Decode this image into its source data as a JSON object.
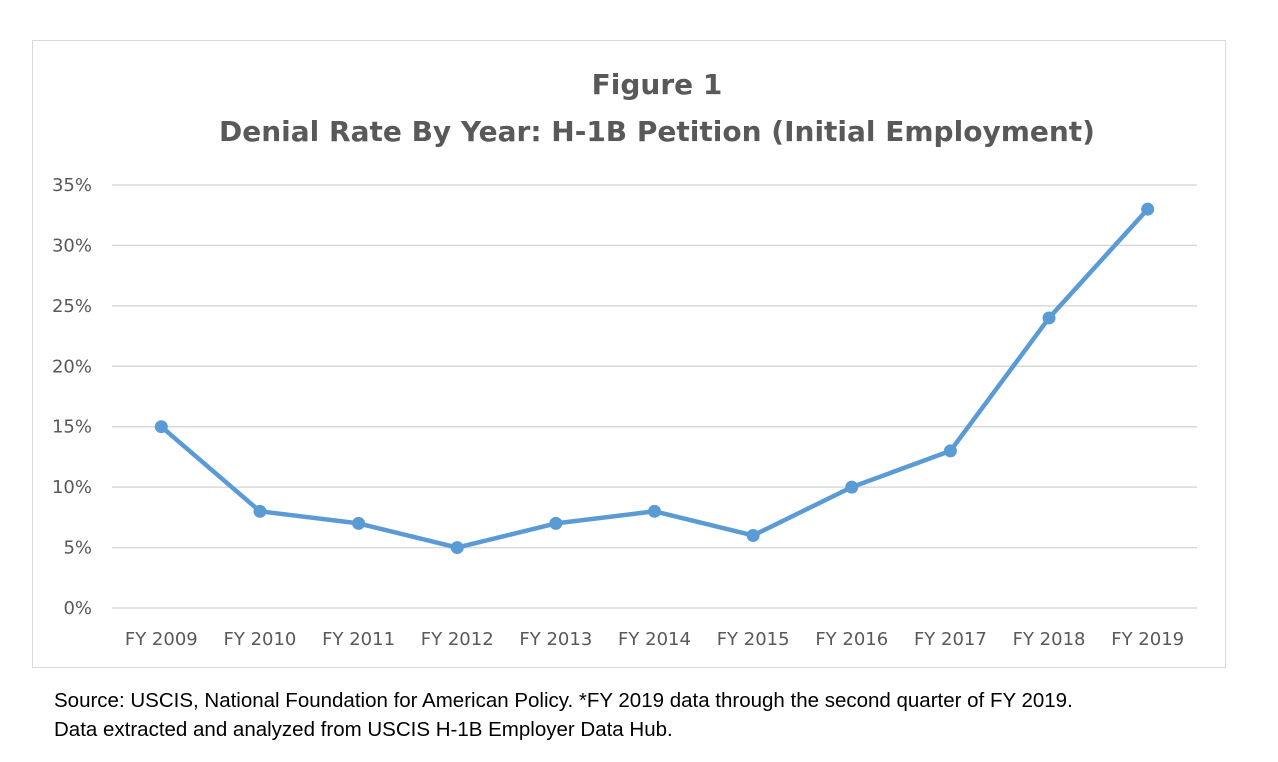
{
  "chart_data": {
    "type": "line",
    "title": "Figure 1",
    "subtitle": "Denial Rate By Year: H-1B Petition (Initial Employment)",
    "categories": [
      "FY 2009",
      "FY 2010",
      "FY 2011",
      "FY 2012",
      "FY 2013",
      "FY 2014",
      "FY 2015",
      "FY 2016",
      "FY 2017",
      "FY 2018",
      "FY 2019"
    ],
    "series": [
      {
        "values": [
          15,
          8,
          7,
          5,
          7,
          8,
          6,
          10,
          13,
          24,
          33
        ]
      }
    ],
    "ylim": [
      0,
      35
    ],
    "yticks": [
      0,
      5,
      10,
      15,
      20,
      25,
      30,
      35
    ],
    "ytick_suffix": "%",
    "grid": true,
    "legend": "none",
    "line_color": "#5b9bd5",
    "grid_color": "#d9d9d9"
  },
  "source": {
    "line1": "Source: USCIS, National Foundation for American Policy. *FY 2019 data through the second quarter of FY 2019.",
    "line2": "Data extracted and analyzed from USCIS H-1B Employer Data Hub."
  }
}
